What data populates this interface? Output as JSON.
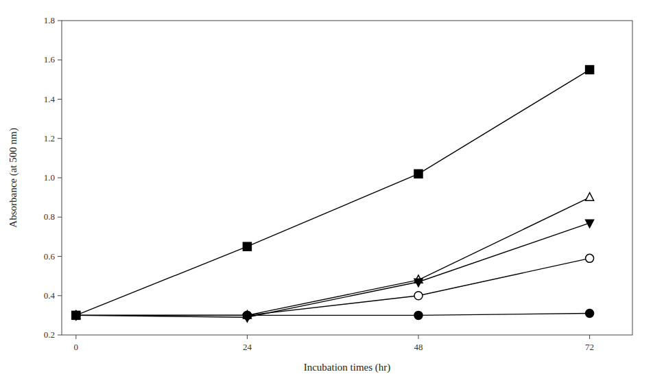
{
  "chart_data": {
    "type": "line",
    "x": [
      0,
      24,
      48,
      72
    ],
    "series": [
      {
        "color": "#000000",
        "marker": "filled-square",
        "values": [
          0.3,
          0.65,
          1.02,
          1.55
        ]
      },
      {
        "color": "#000000",
        "marker": "open-triangle-up",
        "values": [
          0.3,
          0.3,
          0.48,
          0.9
        ]
      },
      {
        "color": "#000000",
        "marker": "filled-triangle-down",
        "values": [
          0.3,
          0.29,
          0.47,
          0.77
        ]
      },
      {
        "color": "#000000",
        "marker": "open-circle",
        "values": [
          0.3,
          0.3,
          0.4,
          0.59
        ]
      },
      {
        "color": "#000000",
        "marker": "filled-circle",
        "values": [
          0.3,
          0.3,
          0.3,
          0.31
        ]
      }
    ],
    "xlabel": "Incubation times (hr)",
    "ylabel": "Absorbance (at 500 nm)",
    "xlim": [
      -2,
      78
    ],
    "ylim": [
      0.2,
      1.8
    ],
    "xticks": [
      0,
      24,
      48,
      72
    ],
    "yticks": [
      0.2,
      0.4,
      0.6,
      0.8,
      {
        "value": 1.0,
        "label": "1.0"
      },
      1.2,
      1.4,
      1.6,
      1.8
    ],
    "grid": false
  }
}
